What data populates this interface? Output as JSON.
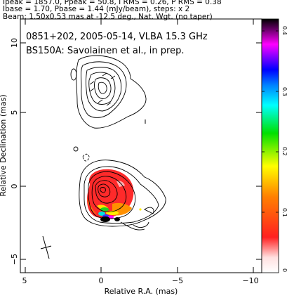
{
  "header": {
    "line1": "Ipeak = 1857.0, Ppeak = 50.8, I RMS = 0.26, P RMS = 0.38",
    "line2": "Ibase = 1.70, Pbase = 1.44 (mJy/beam), steps: x 2",
    "line3": "Beam: 1.50x0.53 mas at -12.5 deg., Nat. Wgt. (no taper)"
  },
  "plot": {
    "title_line1": "0851+202, 2005-05-14, VLBA 15.3 GHz",
    "title_line2": "BS150A: Savolainen et al., in prep.",
    "xlabel": "Relative R.A. (mas)",
    "ylabel": "Relative Declination (mas)",
    "xticks": [
      "5",
      "0",
      "−5",
      "−10"
    ],
    "yticks": [
      "10",
      "5",
      "0",
      "−5"
    ],
    "colorbar_ticks": [
      "0.4",
      "0.3",
      "0.2",
      "0.1",
      "0"
    ]
  },
  "image": {
    "source": "0851+202",
    "date": "2005-05-14",
    "instrument": "VLBA",
    "frequency": "15.3 GHz",
    "peak_total_intensity_mJy_per_beam": 1857.0,
    "peak_polarized_intensity_mJy_per_beam": 50.8,
    "i_rms": 0.26,
    "p_rms": 0.38,
    "i_base": 1.7,
    "p_base": 1.44,
    "contour_step_factor": 2,
    "beam": {
      "major_mas": 1.5,
      "minor_mas": 0.53,
      "pa_deg": -12.5
    },
    "weighting": "Nat. Wgt.",
    "taper": "no taper",
    "xlim_mas": [
      5,
      -11.5
    ],
    "ylim_mas": [
      -5.8,
      11.3
    ],
    "colorbar_range": [
      0,
      0.4
    ],
    "colorscale": [
      "#ffffff",
      "#ff1a1a",
      "#ff8000",
      "#ffff00",
      "#00ff00",
      "#00ffff",
      "#0000ff",
      "#ff00ff",
      "#000000"
    ]
  }
}
